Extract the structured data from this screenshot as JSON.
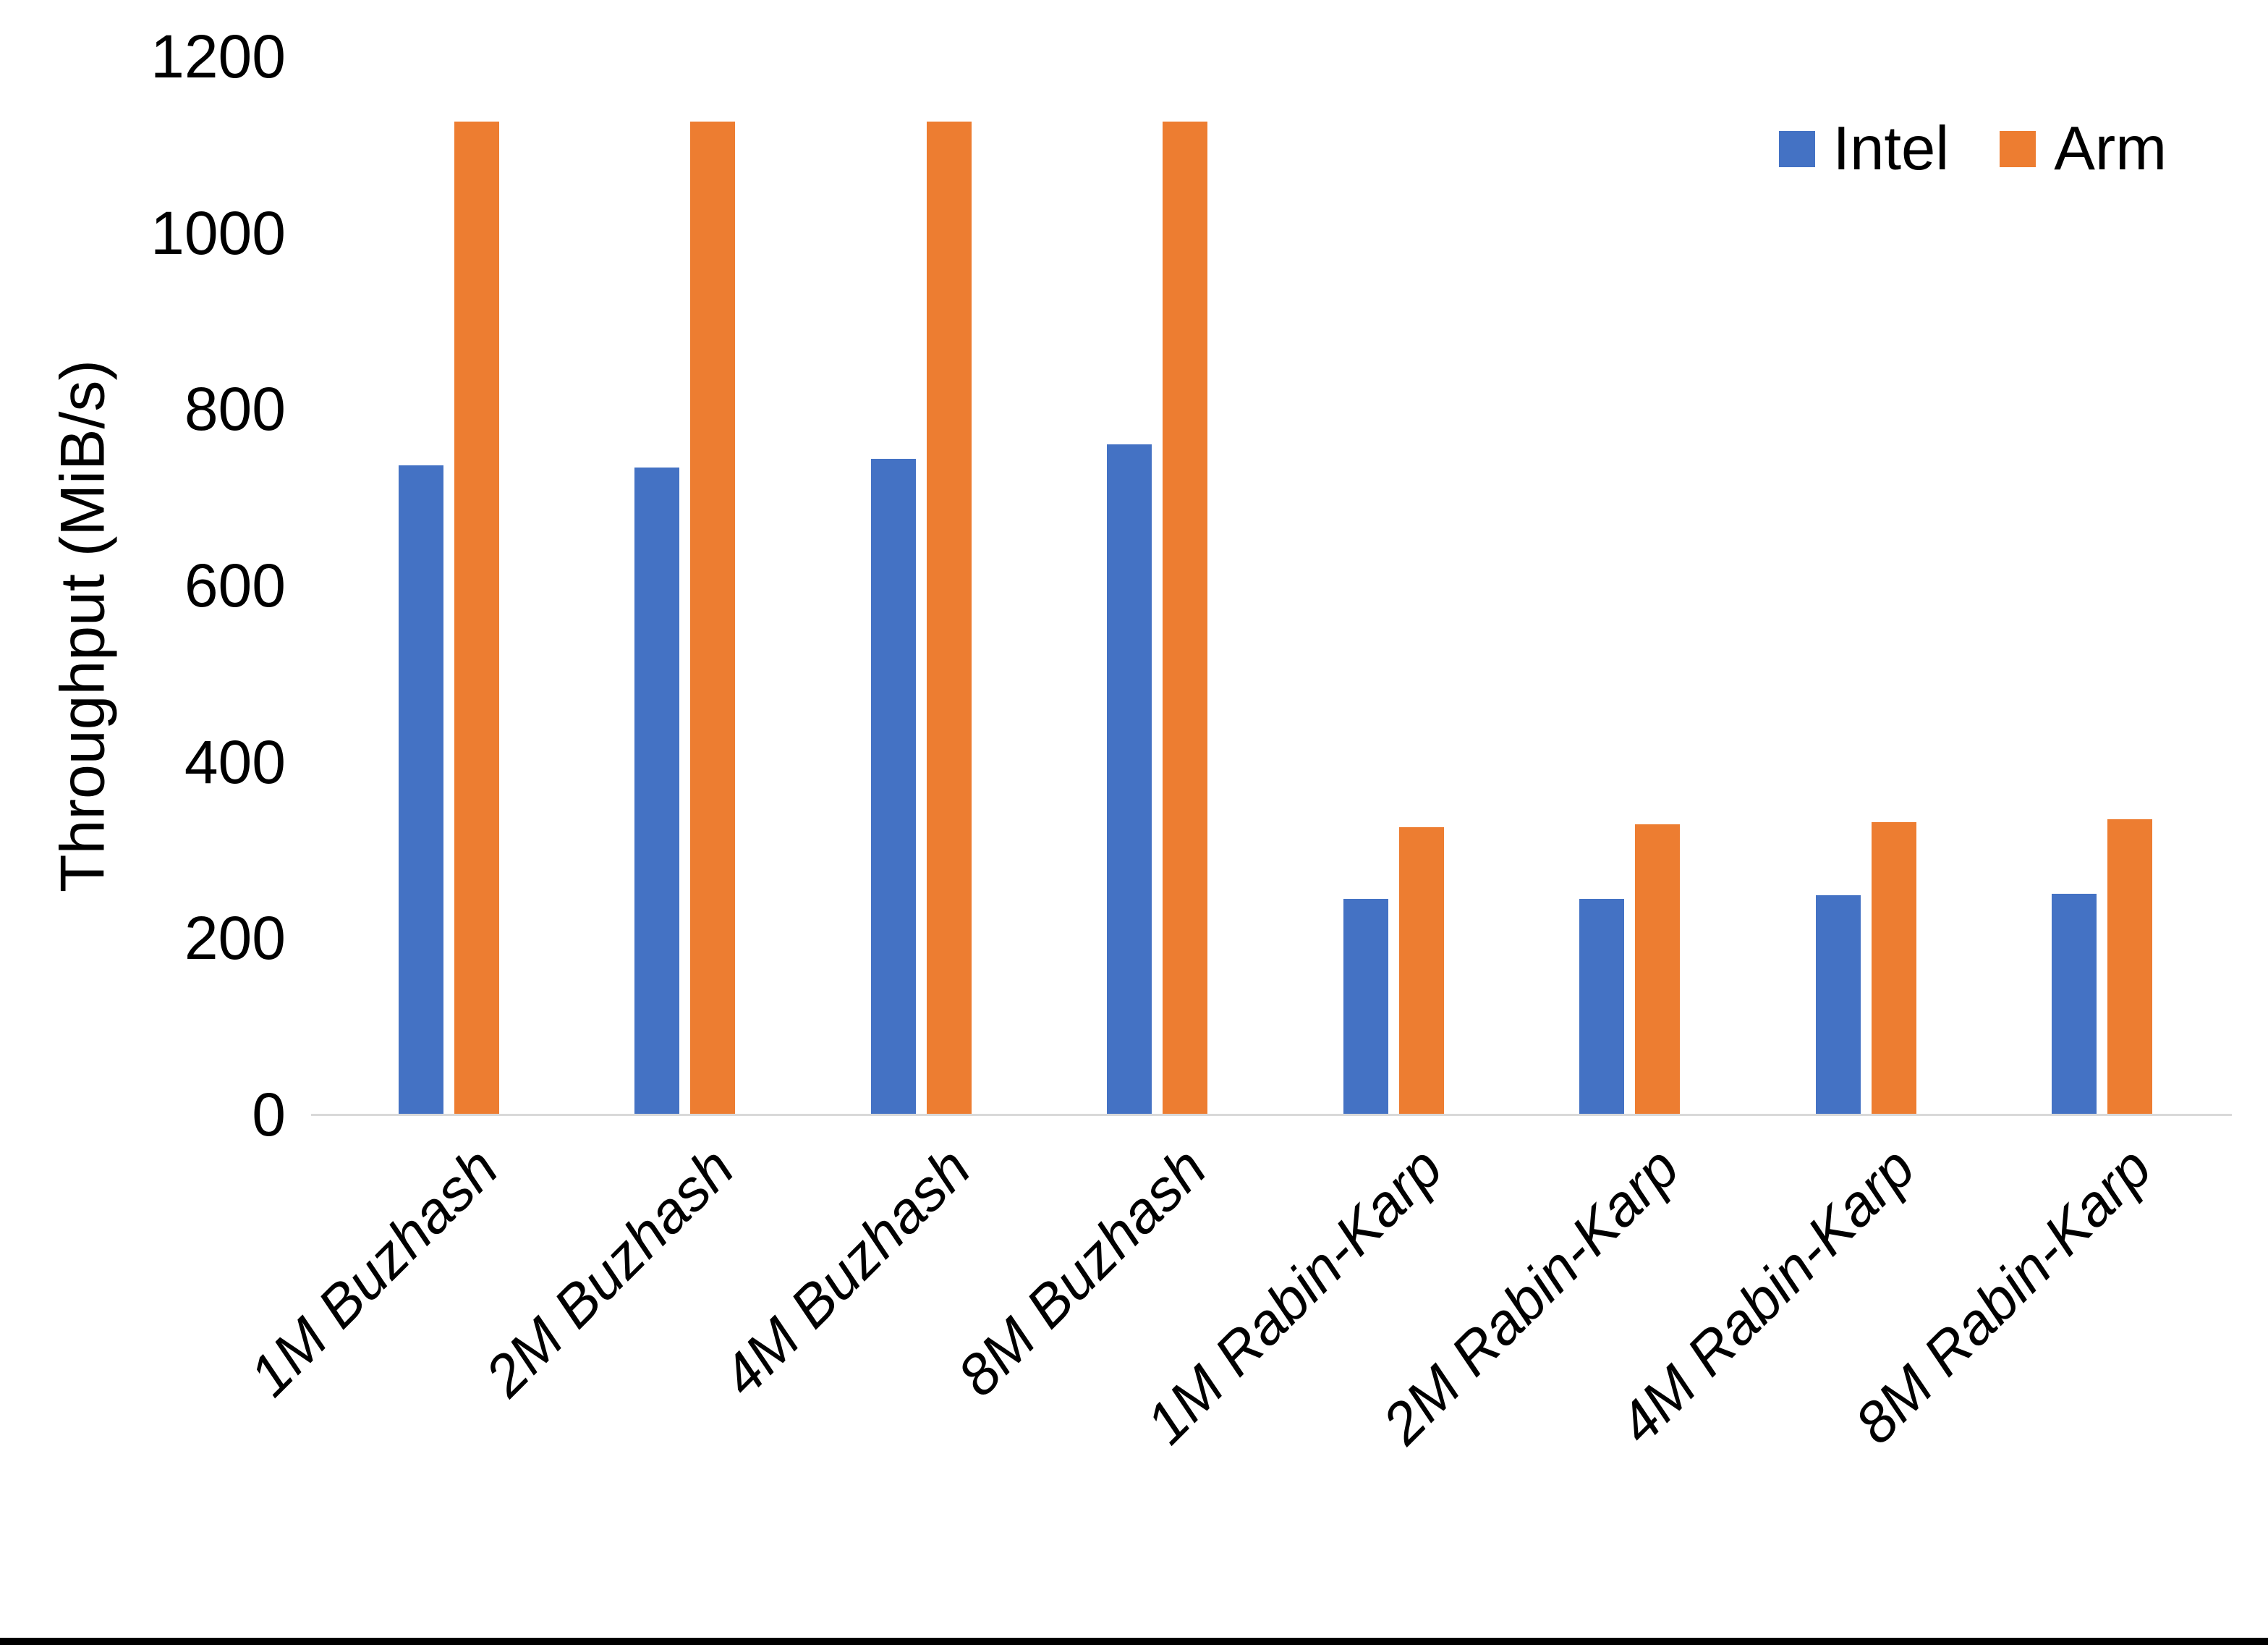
{
  "chart_data": {
    "type": "bar",
    "title": "",
    "categories": [
      "1M Buzhash",
      "2M Buzhash",
      "4M Buzhash",
      "8M Buzhash",
      "1M Rabin-Karp",
      "2M Rabin-Karp",
      "4M Rabin-Karp",
      "8M Rabin-Karp"
    ],
    "series": [
      {
        "name": "Intel",
        "color": "#4472C4",
        "values": [
          736,
          734,
          744,
          760,
          245,
          245,
          249,
          250
        ]
      },
      {
        "name": "Arm",
        "color": "#ED7D31",
        "values": [
          1126,
          1126,
          1126,
          1126,
          326,
          329,
          332,
          335
        ]
      }
    ],
    "xlabel": "",
    "ylabel": "Throughput (MiB/s)",
    "ylim": [
      0,
      1200
    ],
    "yticks": [
      0,
      200,
      400,
      600,
      800,
      1000,
      1200
    ],
    "grid": "off",
    "legend_position": "top-right",
    "axis_line_color": "#D9D9D9",
    "text_color": "#000000",
    "category_label_style": "italic, rotated 45 degrees"
  }
}
